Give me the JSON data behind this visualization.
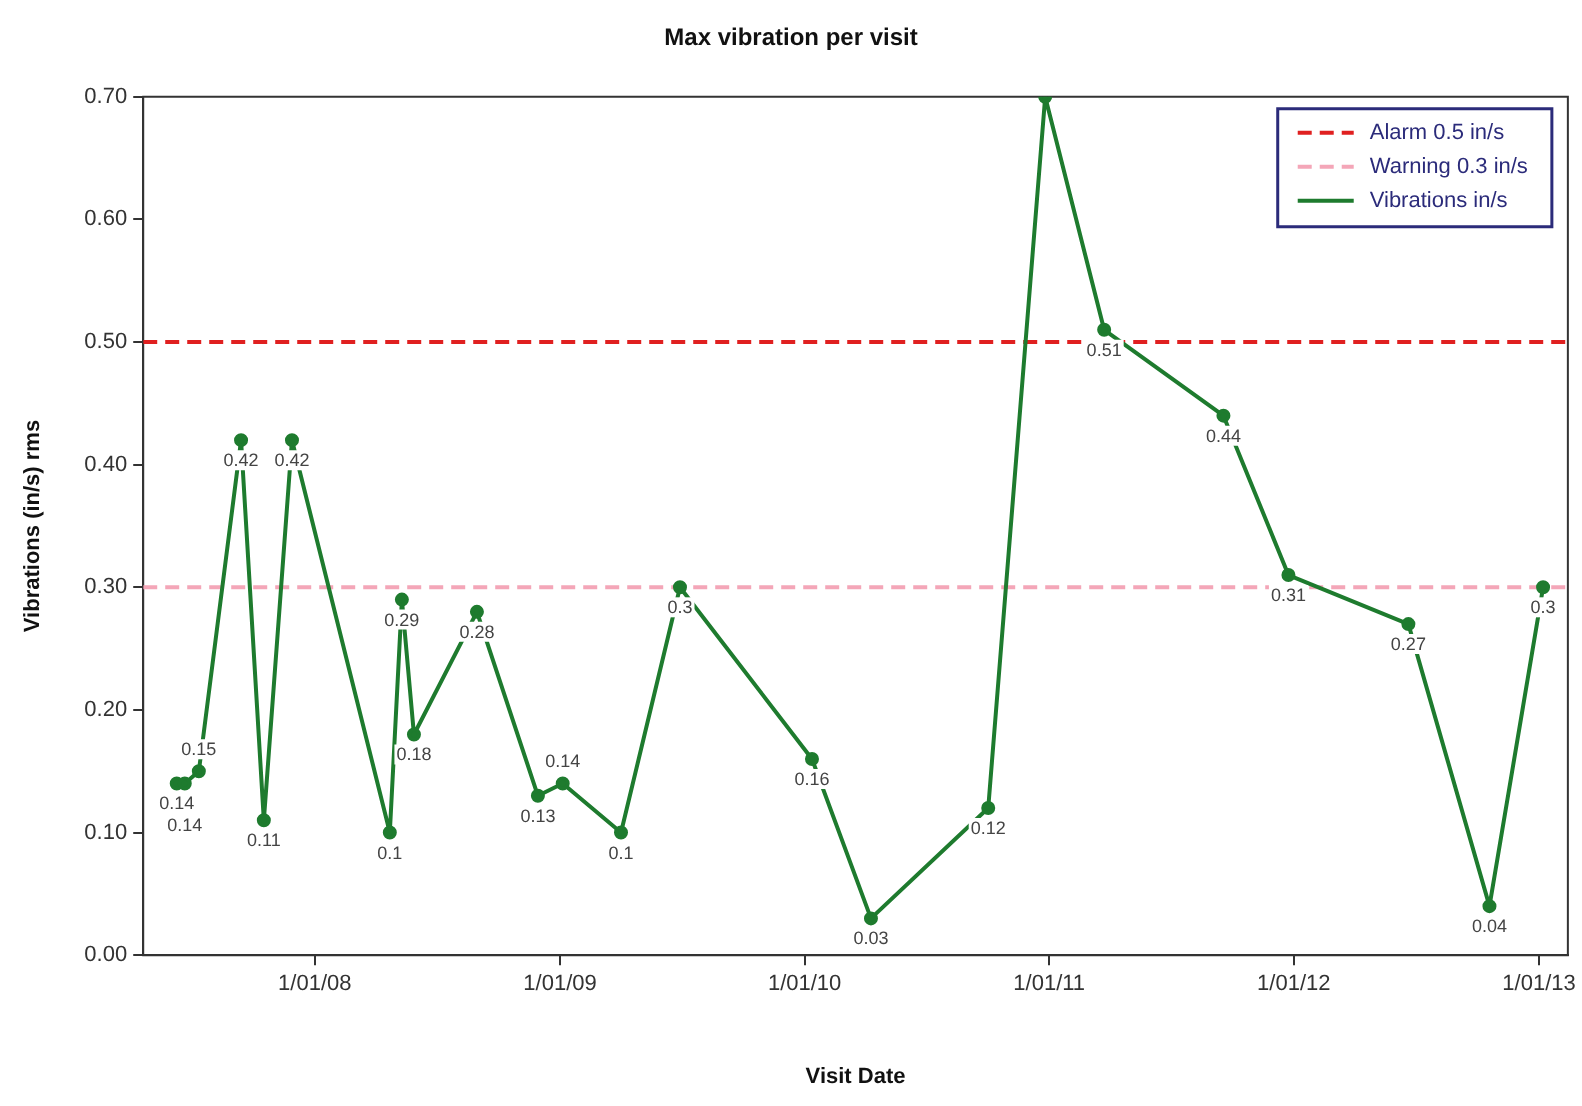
{
  "chart_data": {
    "type": "line",
    "title": "Max vibration per visit",
    "xlabel": "Visit Date",
    "ylabel": "Vibrations (in/s) rms",
    "x": [
      "2007-06-09",
      "2007-06-21",
      "2007-07-12",
      "2007-09-13",
      "2007-10-17",
      "2007-11-28",
      "2008-04-22",
      "2008-05-10",
      "2008-05-28",
      "2008-08-30",
      "2008-11-29",
      "2009-01-05",
      "2009-04-02",
      "2009-06-29",
      "2010-01-12",
      "2010-04-10",
      "2010-10-02",
      "2010-12-26",
      "2011-03-24",
      "2011-09-18",
      "2011-12-24",
      "2012-06-20",
      "2012-10-19",
      "2013-01-07"
    ],
    "series": [
      {
        "name": "Vibrations in/s",
        "color": "#1e7b2e",
        "values": [
          0.14,
          0.14,
          0.15,
          0.42,
          0.11,
          0.42,
          0.1,
          0.29,
          0.18,
          0.28,
          0.13,
          0.14,
          0.1,
          0.3,
          0.16,
          0.03,
          0.12,
          0.7,
          0.51,
          0.44,
          0.31,
          0.27,
          0.04,
          0.3
        ],
        "value_labels": [
          "0.14",
          "0.14",
          "0.15",
          "0.42",
          "0.11",
          "0.42",
          "0.1",
          "0.29",
          "0.18",
          "0.28",
          "0.13",
          "0.14",
          "0.1",
          "0.3",
          "0.16",
          "0.03",
          "0.12",
          null,
          "0.51",
          "0.44",
          "0.31",
          "0.27",
          "0.04",
          "0.3"
        ]
      }
    ],
    "ref_lines": [
      {
        "axis": "y",
        "value": 0.5,
        "label": "Alarm 0.5 in/s",
        "color": "#e02020",
        "line_style": "dashed"
      },
      {
        "axis": "y",
        "value": 0.3,
        "label": "Warning 0.3 in/s",
        "color": "#f4a6b8",
        "line_style": "dashed"
      }
    ],
    "xlim": [
      "2007-04-20",
      "2013-02-13"
    ],
    "xticks": [
      {
        "value": "2008-01-01",
        "label": "1/01/08"
      },
      {
        "value": "2009-01-01",
        "label": "1/01/09"
      },
      {
        "value": "2010-01-01",
        "label": "1/01/10"
      },
      {
        "value": "2011-01-01",
        "label": "1/01/11"
      },
      {
        "value": "2012-01-01",
        "label": "1/01/12"
      },
      {
        "value": "2013-01-01",
        "label": "1/01/13"
      }
    ],
    "ylim": [
      0,
      0.7
    ],
    "yticks": [
      {
        "value": 0,
        "label": "0.00"
      },
      {
        "value": 0.1,
        "label": "0.10"
      },
      {
        "value": 0.2,
        "label": "0.20"
      },
      {
        "value": 0.3,
        "label": "0.30"
      },
      {
        "value": 0.4,
        "label": "0.40"
      },
      {
        "value": 0.5,
        "label": "0.50"
      },
      {
        "value": 0.6,
        "label": "0.60"
      },
      {
        "value": 0.7,
        "label": "0.70"
      }
    ],
    "grid": false,
    "legend": "top right",
    "marker": "circle",
    "line_style": "solid"
  }
}
